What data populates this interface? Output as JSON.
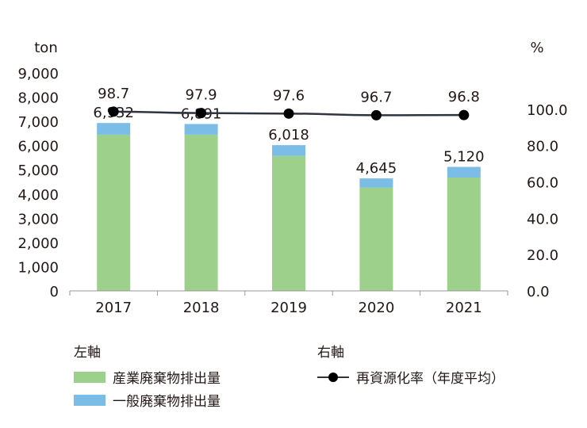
{
  "chart_data": {
    "type": "bar",
    "categories": [
      "2017",
      "2018",
      "2019",
      "2020",
      "2021"
    ],
    "left_axis": {
      "unit": "ton",
      "ylim": [
        0,
        9000
      ],
      "ticks": [
        "0",
        "1,000",
        "2,000",
        "3,000",
        "4,000",
        "5,000",
        "6,000",
        "7,000",
        "8,000",
        "9,000"
      ]
    },
    "right_axis": {
      "unit": "%",
      "ylim": [
        0,
        120
      ],
      "ticks": [
        "0.0",
        "20.0",
        "40.0",
        "60.0",
        "80.0",
        "100.0"
      ]
    },
    "series": [
      {
        "name": "産業廃棄物排出量",
        "type": "stacked-bar",
        "axis": "left",
        "color": "#9dd18b",
        "values": [
          6450,
          6450,
          5570,
          4270,
          4680
        ]
      },
      {
        "name": "一般廃棄物排出量",
        "type": "stacked-bar",
        "axis": "left",
        "color": "#7cbde8",
        "values": [
          482,
          441,
          448,
          375,
          440
        ]
      },
      {
        "name": "再資源化率（年度平均）",
        "type": "line",
        "axis": "right",
        "color": "#2e3440",
        "values": [
          98.7,
          97.9,
          97.6,
          96.7,
          96.8
        ]
      }
    ],
    "total_labels": [
      "6,932",
      "6,891",
      "6,018",
      "4,645",
      "5,120"
    ],
    "line_labels": [
      "98.7",
      "97.9",
      "97.6",
      "96.7",
      "96.8"
    ],
    "grid": false,
    "legend_placement": "bottom"
  },
  "legend": {
    "left_title": "左軸",
    "right_title": "右軸",
    "items": {
      "industrial": "産業廃棄物排出量",
      "general": "一般廃棄物排出量",
      "rate": "再資源化率（年度平均）"
    }
  }
}
